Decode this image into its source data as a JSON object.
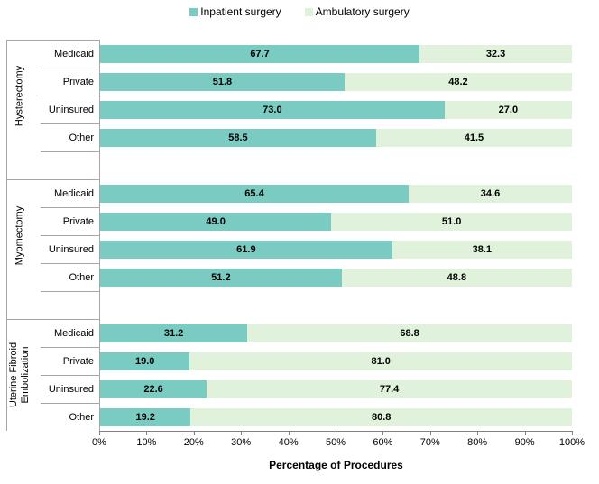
{
  "legend": {
    "items": [
      {
        "label": "Inpatient surgery",
        "color": "#7accc3"
      },
      {
        "label": "Ambulatory surgery",
        "color": "#e0f2db"
      }
    ]
  },
  "chart_data": {
    "type": "bar",
    "stacked": true,
    "orientation": "horizontal",
    "title": "",
    "xlabel": "Percentage of Procedures",
    "xlim": [
      0,
      100
    ],
    "x_ticks": [
      "0%",
      "10%",
      "20%",
      "30%",
      "40%",
      "50%",
      "60%",
      "70%",
      "80%",
      "90%",
      "100%"
    ],
    "grid": false,
    "legend_position": "top",
    "value_format": "one-decimal",
    "series": [
      {
        "name": "Inpatient surgery",
        "color": "#7accc3"
      },
      {
        "name": "Ambulatory surgery",
        "color": "#e0f2db"
      }
    ],
    "groups": [
      {
        "label": "Hysterectomy",
        "rows": [
          {
            "category": "Medicaid",
            "values": [
              67.7,
              32.3
            ]
          },
          {
            "category": "Private",
            "values": [
              51.8,
              48.2
            ]
          },
          {
            "category": "Uninsured",
            "values": [
              73.0,
              27.0
            ]
          },
          {
            "category": "Other",
            "values": [
              58.5,
              41.5
            ]
          }
        ]
      },
      {
        "label": "Myomectomy",
        "rows": [
          {
            "category": "Medicaid",
            "values": [
              65.4,
              34.6
            ]
          },
          {
            "category": "Private",
            "values": [
              49.0,
              51.0
            ]
          },
          {
            "category": "Uninsured",
            "values": [
              61.9,
              38.1
            ]
          },
          {
            "category": "Other",
            "values": [
              51.2,
              48.8
            ]
          }
        ]
      },
      {
        "label": "Uterine Fibroid\nEmbolization",
        "rows": [
          {
            "category": "Medicaid",
            "values": [
              31.2,
              68.8
            ]
          },
          {
            "category": "Private",
            "values": [
              19.0,
              81.0
            ]
          },
          {
            "category": "Uninsured",
            "values": [
              22.6,
              77.4
            ]
          },
          {
            "category": "Other",
            "values": [
              19.2,
              80.8
            ]
          }
        ]
      }
    ]
  },
  "colors": {
    "separator_line": "#a6a6a6",
    "axis_line": "#808080",
    "label_text": "#000000"
  }
}
